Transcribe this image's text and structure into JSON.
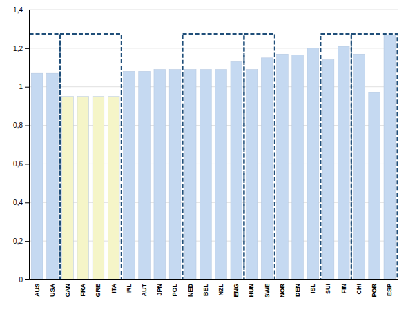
{
  "chart_data": {
    "type": "bar",
    "categories": [
      "AUS",
      "USA",
      "CAN",
      "FRA",
      "GRE",
      "ITA",
      "IRL",
      "AUT",
      "JPN",
      "POL",
      "NED",
      "BEL",
      "NZL",
      "ENG",
      "HUN",
      "SWE",
      "NOR",
      "DEN",
      "ISL",
      "SUI",
      "FIN",
      "CHI",
      "POR",
      "ESP"
    ],
    "values": [
      1.07,
      1.07,
      0.95,
      0.95,
      0.95,
      0.95,
      1.08,
      1.08,
      1.09,
      1.09,
      1.09,
      1.09,
      1.09,
      1.13,
      1.09,
      1.15,
      1.17,
      1.165,
      1.2,
      1.14,
      1.21,
      1.17,
      0.97,
      1.27
    ],
    "colors": [
      "#c5d9f1",
      "#c5d9f1",
      "#f5f5c8",
      "#f5f5c8",
      "#f5f5c8",
      "#f5f5c8",
      "#c5d9f1",
      "#c5d9f1",
      "#c5d9f1",
      "#c5d9f1",
      "#c5d9f1",
      "#c5d9f1",
      "#c5d9f1",
      "#c5d9f1",
      "#c5d9f1",
      "#c5d9f1",
      "#c5d9f1",
      "#c5d9f1",
      "#c5d9f1",
      "#c5d9f1",
      "#c5d9f1",
      "#c5d9f1",
      "#c5d9f1",
      "#c5d9f1"
    ],
    "ylim": [
      0,
      1.4
    ],
    "yticks": [
      0,
      {
        "value": 0.2,
        "label": "0,2"
      },
      {
        "value": 0.4,
        "label": "0,4"
      },
      {
        "value": 0.6,
        "label": "0,6"
      },
      {
        "value": 0.8,
        "label": "0,8"
      },
      1,
      {
        "value": 1.2,
        "label": "1,2"
      },
      {
        "value": 1.4,
        "label": "1,4"
      }
    ],
    "grid": true,
    "groups": [
      {
        "categories": [
          "AUS",
          "USA"
        ],
        "top": 1.275,
        "color": "#1f4e79",
        "line_style": "dashed"
      },
      {
        "categories": [
          "CAN",
          "FRA",
          "GRE",
          "ITA"
        ],
        "top": 1.275,
        "color": "#1f4e79",
        "line_style": "dashed"
      },
      {
        "categories": [
          "NED",
          "BEL",
          "ENG"
        ],
        "top": 1.275,
        "color": "#1f4e79",
        "line_style": "dashed"
      },
      {
        "categories": [
          "HUN",
          "SWE"
        ],
        "top": 1.275,
        "color": "#1f4e79",
        "line_style": "dashed"
      },
      {
        "categories": [
          "SUI",
          "FIN"
        ],
        "top": 1.275,
        "color": "#1f4e79",
        "line_style": "dashed"
      },
      {
        "categories": [
          "CHI",
          "POR",
          "ESP"
        ],
        "top": 1.275,
        "color": "#1f4e79",
        "line_style": "dashed"
      }
    ]
  }
}
